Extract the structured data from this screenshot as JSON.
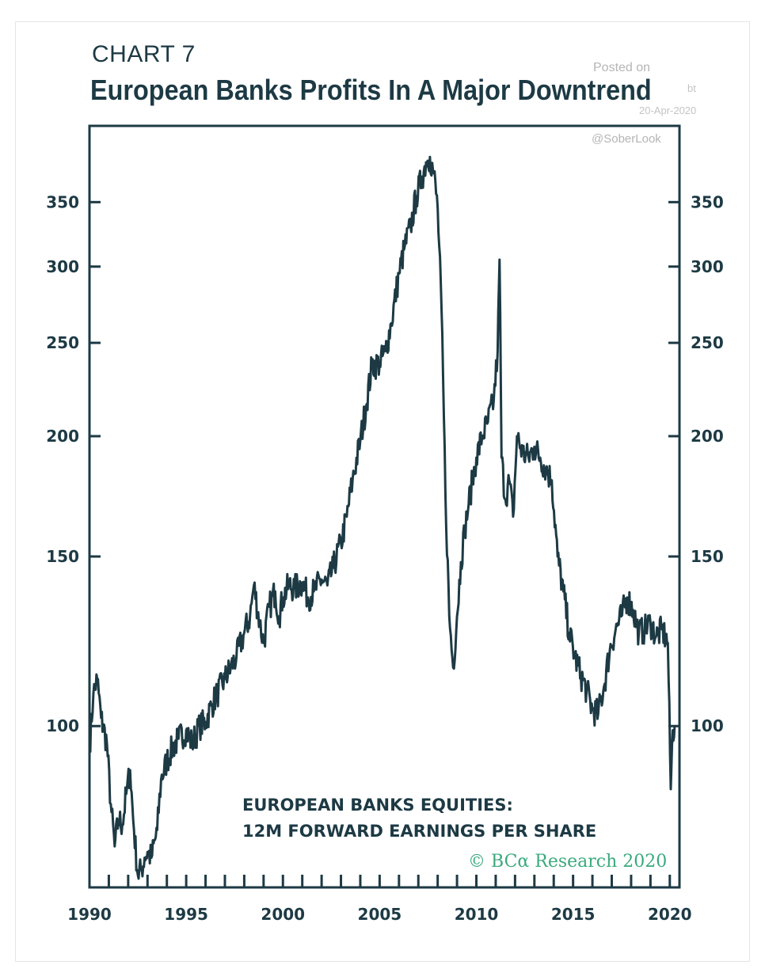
{
  "chart_data": {
    "type": "line",
    "chart_number": "CHART 7",
    "title": "European Banks Profits In A Major Downtrend",
    "annotation_lines": [
      "EUROPEAN BANKS EQUITIES:",
      "12M FORWARD EARNINGS PER SHARE"
    ],
    "credit": "© BCα Research 2020",
    "y_scale": "log",
    "ylim": [
      68,
      420
    ],
    "y_ticks": [
      100,
      150,
      200,
      250,
      300,
      350
    ],
    "y_tick_labels": [
      "100",
      "150",
      "200",
      "250",
      "300",
      "350"
    ],
    "xlim": [
      1990,
      2020.5
    ],
    "x_ticks": [
      1990,
      1995,
      2000,
      2005,
      2010,
      2015,
      2020
    ],
    "x_tick_labels": [
      "1990",
      "1995",
      "2000",
      "2005",
      "2010",
      "2015",
      "2020"
    ],
    "x_minor_tick_step": 1,
    "grid": false,
    "legend": "none",
    "line_color": "#1d3a44",
    "series": [
      {
        "x": [
          1990.0,
          1990.2,
          1990.4,
          1990.6,
          1990.9,
          1991.1,
          1991.3,
          1991.5,
          1991.7,
          1991.9,
          1992.1,
          1992.3,
          1992.5,
          1992.7,
          1992.85,
          1993.0,
          1993.2,
          1993.5,
          1993.7,
          1994.0,
          1994.3,
          1994.6,
          1995.0,
          1995.3,
          1995.7,
          1996.0,
          1996.3,
          1996.6,
          1997.0,
          1997.3,
          1997.6,
          1998.0,
          1998.3,
          1998.5,
          1998.8,
          1999.0,
          1999.3,
          1999.6,
          1999.8,
          2000.0,
          2000.3,
          2000.6,
          2001.0,
          2001.3,
          2001.6,
          2002.0,
          2002.3,
          2002.6,
          2003.0,
          2003.3,
          2003.6,
          2004.0,
          2004.3,
          2004.6,
          2005.0,
          2005.3,
          2005.6,
          2006.0,
          2006.3,
          2006.6,
          2006.9,
          2007.2,
          2007.4,
          2007.6,
          2007.8,
          2008.0,
          2008.2,
          2008.4,
          2008.6,
          2008.8,
          2009.0,
          2009.2,
          2009.4,
          2009.6,
          2009.8,
          2010.0,
          2010.3,
          2010.6,
          2010.9,
          2011.1,
          2011.2,
          2011.3,
          2011.5,
          2011.7,
          2011.9,
          2012.1,
          2012.4,
          2012.7,
          2013.0,
          2013.3,
          2013.6,
          2013.9,
          2014.2,
          2014.5,
          2014.8,
          2015.1,
          2015.4,
          2015.7,
          2016.0,
          2016.3,
          2016.6,
          2016.9,
          2017.2,
          2017.5,
          2017.8,
          2018.1,
          2018.4,
          2018.7,
          2019.0,
          2019.3,
          2019.6,
          2019.9,
          2020.05,
          2020.15,
          2020.25
        ],
        "y": [
          95,
          108,
          112,
          102,
          96,
          83,
          75,
          80,
          79,
          85,
          90,
          78,
          70,
          71,
          73,
          74,
          73,
          78,
          88,
          92,
          95,
          97,
          99,
          96,
          100,
          101,
          105,
          108,
          112,
          115,
          118,
          125,
          130,
          140,
          128,
          122,
          133,
          138,
          130,
          136,
          140,
          139,
          141,
          136,
          138,
          142,
          140,
          146,
          155,
          165,
          180,
          198,
          215,
          237,
          238,
          245,
          262,
          295,
          315,
          330,
          355,
          372,
          385,
          390,
          375,
          345,
          270,
          175,
          130,
          115,
          130,
          148,
          160,
          170,
          180,
          190,
          200,
          207,
          218,
          245,
          305,
          190,
          172,
          180,
          165,
          200,
          192,
          190,
          195,
          190,
          185,
          180,
          150,
          138,
          125,
          118,
          113,
          109,
          104,
          103,
          110,
          120,
          126,
          130,
          136,
          132,
          125,
          126,
          128,
          124,
          126,
          122,
          86,
          99,
          100
        ]
      }
    ]
  },
  "watermark": {
    "posted_on": "Posted on",
    "blog": "bt",
    "date": "20-Apr-2020",
    "handle": "@SoberLook"
  }
}
